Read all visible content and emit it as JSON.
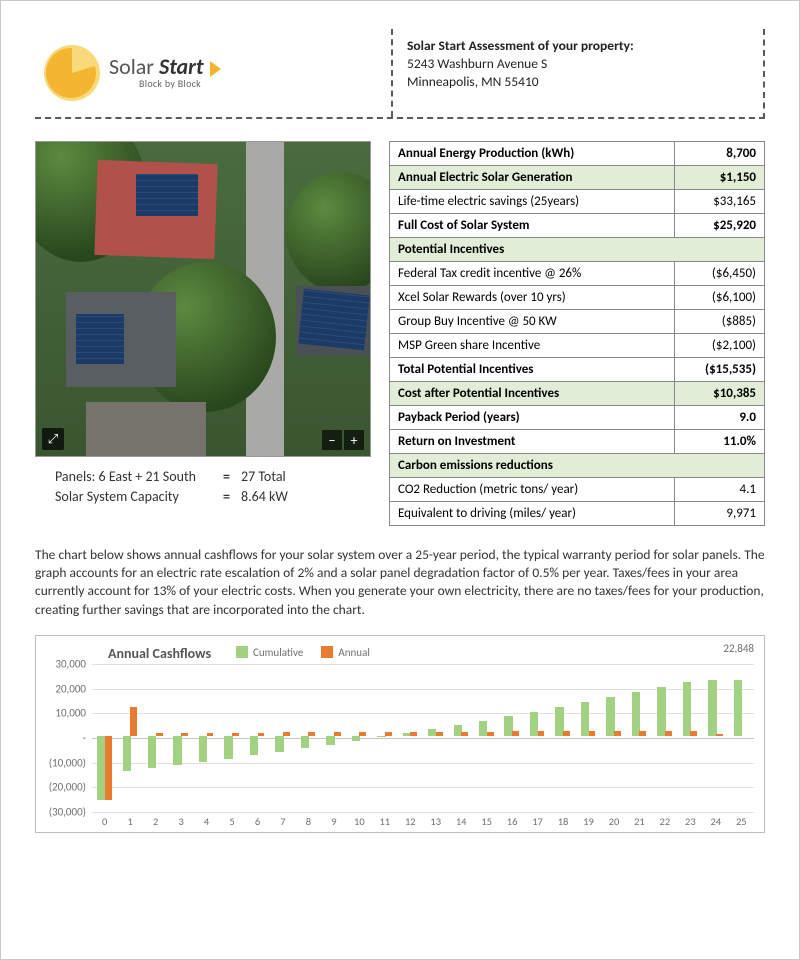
{
  "logo": {
    "line1_a": "Solar ",
    "line1_b": "Start",
    "line2": "Block by Block",
    "circle_outer_color": "#f8da7a",
    "circle_inner_color": "#f4b531",
    "arrow_color": "#f4b531"
  },
  "header": {
    "title": "Solar Start Assessment of your property:",
    "addr1": "5243 Washburn Avenue S",
    "addr2": "Minneapolis, MN 55410"
  },
  "panel_info": {
    "row1_label": "Panels: 6 East + 21 South",
    "row1_value": "27 Total",
    "row2_label": "Solar System Capacity",
    "row2_value": "8.64 kW"
  },
  "table": {
    "rows": [
      {
        "label": "Annual Energy Production (kWh)",
        "value": "8,700",
        "style": "bold"
      },
      {
        "label": "Annual Electric Solar Generation",
        "value": "$1,150",
        "style": "hl"
      },
      {
        "label": "Life-time electric savings (25years)",
        "value": "$33,165",
        "style": ""
      },
      {
        "label": "Full Cost of Solar System",
        "value": "$25,920",
        "style": "bold"
      },
      {
        "label": "Potential Incentives",
        "value": "",
        "style": "spanrow"
      },
      {
        "label": "Federal Tax credit incentive @ 26%",
        "value": "($6,450)",
        "style": ""
      },
      {
        "label": "Xcel Solar Rewards (over 10 yrs)",
        "value": "($6,100)",
        "style": ""
      },
      {
        "label": "Group Buy Incentive @ 50 KW",
        "value": "($885)",
        "style": ""
      },
      {
        "label": "MSP Green share Incentive",
        "value": "($2,100)",
        "style": ""
      },
      {
        "label": "Total Potential Incentives",
        "value": "($15,535)",
        "style": "bold"
      },
      {
        "label": "Cost after Potential Incentives",
        "value": "$10,385",
        "style": "hl"
      },
      {
        "label": "Payback Period (years)",
        "value": "9.0",
        "style": "bold"
      },
      {
        "label": "Return on Investment",
        "value": "11.0%",
        "style": "bold"
      },
      {
        "label": "Carbon emissions reductions",
        "value": "",
        "style": "spanrow"
      },
      {
        "label": "CO2 Reduction (metric tons/ year)",
        "value": "4.1",
        "style": ""
      },
      {
        "label": "Equivalent to driving (miles/ year)",
        "value": "9,971",
        "style": ""
      }
    ]
  },
  "paragraph": "The chart below shows annual cashflows for your solar system over a 25-year period, the typical warranty period for solar panels. The graph accounts for an electric rate escalation of 2% and a solar panel degradation factor of 0.5% per year. Taxes/fees in your area currently account for 13% of your electric costs. When you generate your own electricity, there are no taxes/fees for your production, creating further savings that are incorporated into the chart.",
  "chart": {
    "type": "bar",
    "title": "Annual Cashflows",
    "legend": {
      "cumulative": "Cumulative",
      "annual": "Annual"
    },
    "end_label": "22,848",
    "ylim": [
      -30000,
      30000
    ],
    "ytick_step": 10000,
    "yticks": [
      "30,000",
      "20,000",
      "10,000",
      "-",
      "(10,000)",
      "(20,000)",
      "(30,000)"
    ],
    "xticks": [
      0,
      1,
      2,
      3,
      4,
      5,
      6,
      7,
      8,
      9,
      10,
      11,
      12,
      13,
      14,
      15,
      16,
      17,
      18,
      19,
      20,
      21,
      22,
      23,
      24,
      25
    ],
    "colors": {
      "cumulative": "#a3d182",
      "annual": "#e97a2f",
      "grid": "#e0e0e0",
      "background": "#ffffff",
      "text": "#6f6f6f"
    },
    "title_fontsize": 14,
    "label_fontsize": 11,
    "bar_width": 0.6,
    "cumulative": [
      -25920,
      -14400,
      -13150,
      -11870,
      -10560,
      -9220,
      -7850,
      -6440,
      -5000,
      -3520,
      -2000,
      -450,
      1150,
      2790,
      4480,
      6210,
      7990,
      9820,
      11700,
      13640,
      15630,
      17680,
      19790,
      21960,
      22848,
      22848
    ],
    "annual": [
      -25920,
      11520,
      1250,
      1280,
      1310,
      1340,
      1370,
      1410,
      1440,
      1480,
      1520,
      1550,
      1600,
      1640,
      1690,
      1730,
      1780,
      1830,
      1880,
      1940,
      1990,
      2050,
      2110,
      2170,
      890,
      0
    ]
  }
}
